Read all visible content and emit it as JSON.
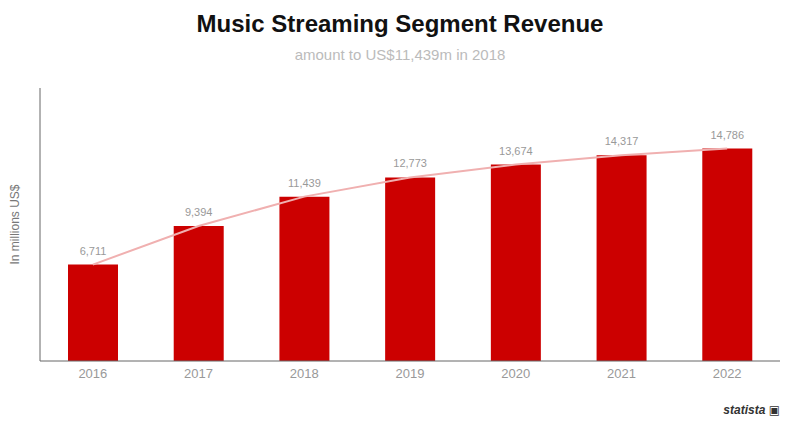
{
  "chart_data": {
    "type": "bar",
    "title": "Music Streaming Segment Revenue",
    "subtitle": "amount to US$11,439m in 2018",
    "ylabel": "In millions US$",
    "annotations": [
      "statista ▣"
    ],
    "categories": [
      "2016",
      "2017",
      "2018",
      "2019",
      "2020",
      "2021",
      "2022"
    ],
    "series": [
      {
        "type": "bar",
        "color": "#cc0000",
        "values": [
          6711,
          9394,
          11439,
          12773,
          13674,
          14317,
          14786
        ],
        "value_labels": [
          "6,711",
          "9,394",
          "11,439",
          "12,773",
          "13,674",
          "14,317",
          "14,786"
        ]
      },
      {
        "type": "line",
        "color": "#f0b0b0",
        "values": [
          6711,
          9394,
          11439,
          12773,
          13674,
          14317,
          14786
        ]
      }
    ],
    "ylim": [
      0,
      19000
    ],
    "grid": false,
    "data_labels": true,
    "tick_labels": "x"
  }
}
